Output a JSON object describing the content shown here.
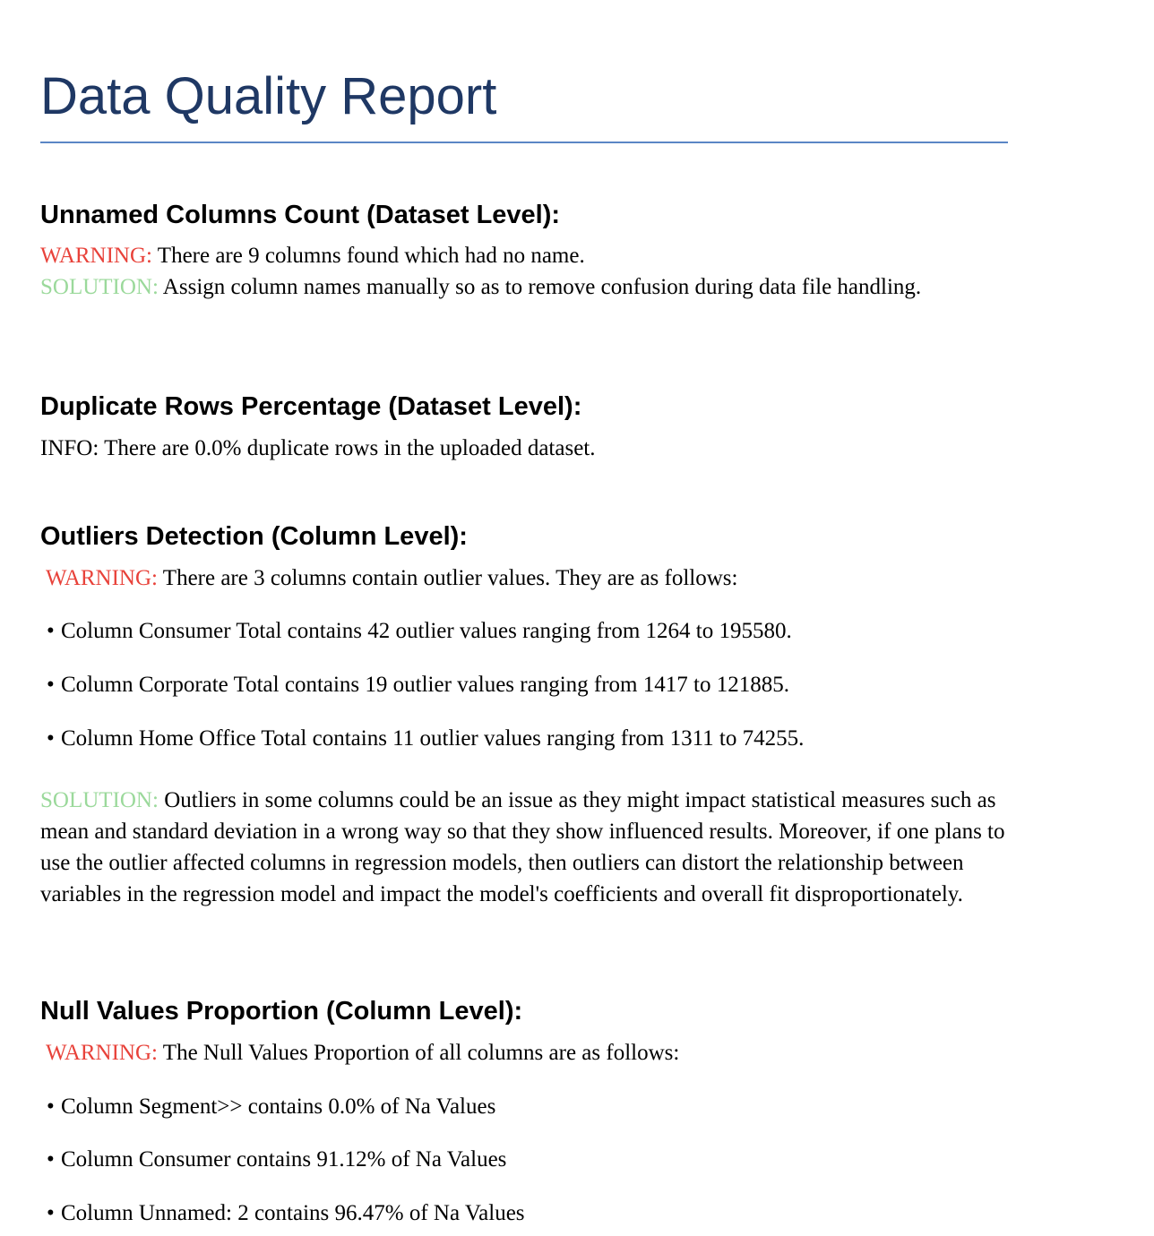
{
  "report": {
    "title": "Data Quality Report"
  },
  "sections": {
    "unnamed": {
      "heading": "Unnamed Columns Count (Dataset Level):",
      "warning_label": "WARNING:",
      "warning_text": " There are 9 columns found which had no name.",
      "solution_label": "SOLUTION:",
      "solution_text": " Assign column names manually so as to remove confusion during data file handling."
    },
    "duplicates": {
      "heading": "Duplicate Rows Percentage (Dataset Level):",
      "info_text": "INFO: There are 0.0% duplicate rows in the uploaded dataset."
    },
    "outliers": {
      "heading": "Outliers Detection (Column Level):",
      "warning_label": "WARNING:",
      "warning_text": " There are 3 columns contain outlier values. They are as follows:",
      "items": [
        "Column Consumer Total contains 42 outlier values ranging from 1264 to 195580.",
        "Column Corporate Total contains 19 outlier values ranging from 1417 to 121885.",
        "Column Home Office Total contains 11 outlier values ranging from 1311 to 74255."
      ],
      "solution_label": "SOLUTION:",
      "solution_text": " Outliers in some columns could be an issue as they might impact statistical measures such as mean and standard deviation in a wrong way so that they show influenced results. Moreover, if one plans to use the outlier affected columns in regression models, then outliers can distort the relationship between variables in the regression model and impact the model's coefficients and overall fit disproportionately."
    },
    "nulls": {
      "heading": "Null Values Proportion (Column Level):",
      "warning_label": "WARNING:",
      "warning_text": " The Null Values Proportion of all columns are as follows:",
      "items": [
        "Column Segment>> contains 0.0% of Na Values",
        "Column Consumer contains 91.12% of Na Values",
        "Column Unnamed: 2 contains 96.47% of Na Values"
      ]
    }
  },
  "bullet_glyph": "•",
  "colors": {
    "title": "#1f3864",
    "rule": "#5b86c5",
    "warning": "#e8423a",
    "solution": "#9bd99b"
  }
}
